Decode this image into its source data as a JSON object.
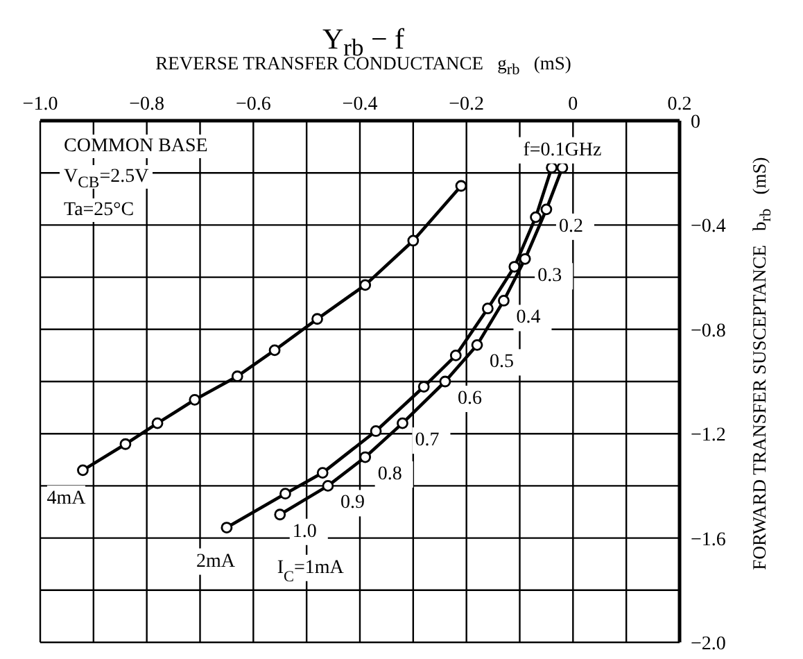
{
  "chart_data": {
    "type": "line",
    "title": "Y$_{rb}$ − f",
    "xlabel": "REVERSE TRANSFER CONDUCTANCE   g$_{rb}$   (mS)",
    "ylabel": "FORWARD TRANSFER SUSCEPTANCE   b$_{rb}$   (mS)",
    "xlim": [
      -1,
      0.2
    ],
    "xticks": [
      {
        "value": -1,
        "label": "−1.0"
      },
      {
        "value": -0.9,
        "label": null
      },
      {
        "value": -0.8,
        "label": "−0.8"
      },
      {
        "value": -0.7,
        "label": null
      },
      {
        "value": -0.6,
        "label": "−0.6"
      },
      {
        "value": -0.5,
        "label": null
      },
      {
        "value": -0.4,
        "label": "−0.4"
      },
      {
        "value": -0.3,
        "label": null
      },
      {
        "value": -0.2,
        "label": "−0.2"
      },
      {
        "value": -0.1,
        "label": null
      },
      0,
      {
        "value": 0.1,
        "label": null
      },
      {
        "value": 0.2,
        "label": "0.2"
      }
    ],
    "ylim": [
      -2,
      0
    ],
    "yticks": [
      {
        "value": -2,
        "label": "−2.0"
      },
      {
        "value": -1.8,
        "label": null
      },
      {
        "value": -1.6,
        "label": "−1.6"
      },
      {
        "value": -1.4,
        "label": null
      },
      {
        "value": -1.2,
        "label": "−1.2"
      },
      {
        "value": -1,
        "label": null
      },
      {
        "value": -0.8,
        "label": "−0.8"
      },
      {
        "value": -0.6,
        "label": null
      },
      {
        "value": -0.4,
        "label": "−0.4"
      },
      {
        "value": -0.2,
        "label": null
      },
      0
    ],
    "grid": true,
    "marker": "circle",
    "line_style": "solid",
    "series": [
      {
        "name": "4mA",
        "color": "#000000",
        "x": [
          -0.21,
          -0.3,
          -0.39,
          -0.48,
          -0.56,
          -0.63,
          -0.71,
          -0.78,
          -0.84,
          -0.92
        ],
        "values": [
          -0.25,
          -0.46,
          -0.63,
          -0.76,
          -0.88,
          -0.98,
          -1.07,
          -1.16,
          -1.24,
          -1.34
        ]
      },
      {
        "name": "2mA",
        "color": "#000000",
        "x": [
          -0.04,
          -0.07,
          -0.11,
          -0.16,
          -0.22,
          -0.28,
          -0.37,
          -0.47,
          -0.54,
          -0.65
        ],
        "values": [
          -0.18,
          -0.37,
          -0.56,
          -0.72,
          -0.9,
          -1.02,
          -1.19,
          -1.35,
          -1.43,
          -1.56
        ]
      },
      {
        "name": "I$_{C}$=1mA",
        "color": "#000000",
        "x": [
          -0.02,
          -0.05,
          -0.09,
          -0.13,
          -0.18,
          -0.24,
          -0.32,
          -0.39,
          -0.46,
          -0.55
        ],
        "values": [
          -0.18,
          -0.34,
          -0.53,
          -0.69,
          -0.86,
          -1.0,
          -1.16,
          -1.29,
          -1.4,
          -1.51
        ]
      }
    ],
    "annotations": [
      "COMMON BASE",
      "V$_{CB}$=2.5V",
      "Ta=25°C",
      {
        "text": "f=0.1GHz",
        "x": -0.02,
        "y": -0.18
      },
      {
        "text": "0.2",
        "x": -0.05,
        "y": -0.34
      },
      {
        "text": "0.3",
        "x": -0.09,
        "y": -0.53
      },
      {
        "text": "0.4",
        "x": -0.13,
        "y": -0.69
      },
      {
        "text": "0.5",
        "x": -0.18,
        "y": -0.86
      },
      {
        "text": "0.6",
        "x": -0.24,
        "y": -1.0
      },
      {
        "text": "0.7",
        "x": -0.32,
        "y": -1.16
      },
      {
        "text": "0.8",
        "x": -0.39,
        "y": -1.29
      },
      {
        "text": "0.9",
        "x": -0.46,
        "y": -1.4
      },
      {
        "text": "1.0",
        "x": -0.55,
        "y": -1.51
      }
    ]
  }
}
